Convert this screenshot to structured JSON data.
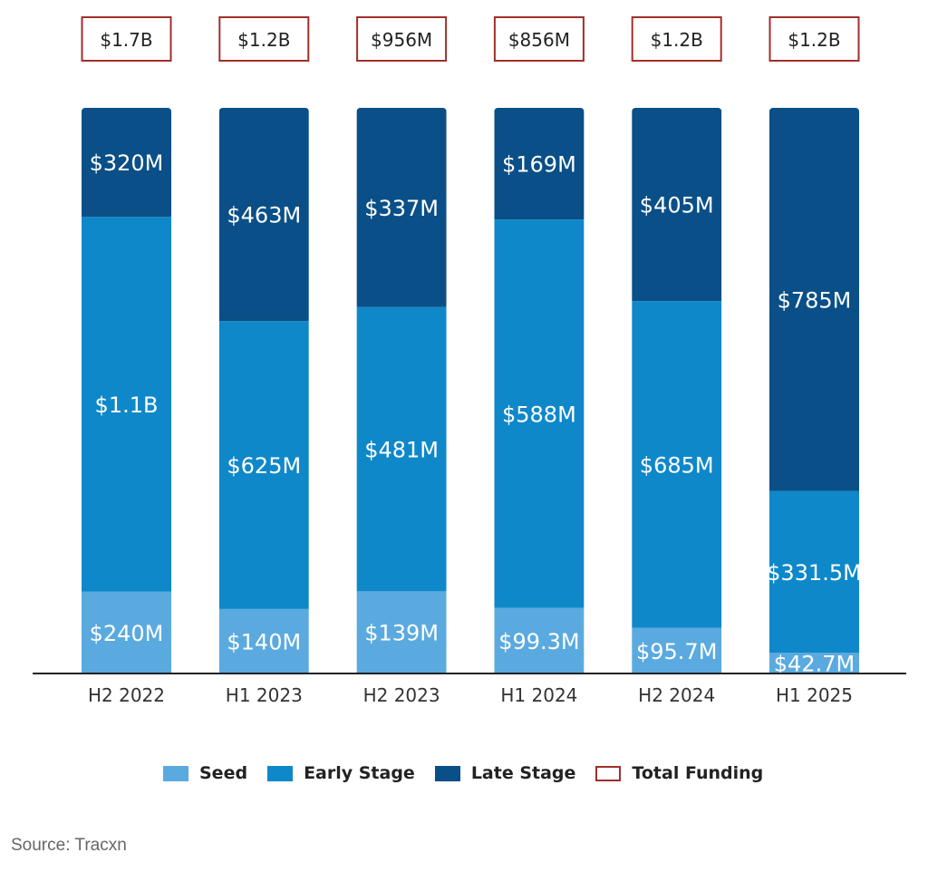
{
  "chart_data": {
    "type": "bar",
    "stacked": true,
    "categories": [
      "H2 2022",
      "H1 2023",
      "H2 2023",
      "H1 2024",
      "H2 2024",
      "H1 2025"
    ],
    "series": [
      {
        "name": "Seed",
        "color": "#5aaadf",
        "values": [
          240,
          140,
          139,
          99.3,
          95.7,
          42.7
        ],
        "labels": [
          "$240M",
          "$140M",
          "$139M",
          "$99.3M",
          "$95.7M",
          "$42.7M"
        ]
      },
      {
        "name": "Early Stage",
        "color": "#0e88c9",
        "values": [
          1100,
          625,
          481,
          588,
          685,
          331.5
        ],
        "labels": [
          "$1.1B",
          "$625M",
          "$481M",
          "$588M",
          "$685M",
          "$331.5M"
        ]
      },
      {
        "name": "Late Stage",
        "color": "#0a4f87",
        "values": [
          320,
          463,
          337,
          169,
          405,
          785
        ],
        "labels": [
          "$320M",
          "$463M",
          "$337M",
          "$169M",
          "$405M",
          "$785M"
        ]
      }
    ],
    "totals": {
      "name": "Total Funding",
      "color": "#a0302a",
      "labels": [
        "$1.7B",
        "$1.2B",
        "$956M",
        "$856M",
        "$1.2B",
        "$1.2B"
      ]
    },
    "normalized": true,
    "legend_position": "bottom",
    "grid": false
  },
  "source": "Source: Tracxn"
}
